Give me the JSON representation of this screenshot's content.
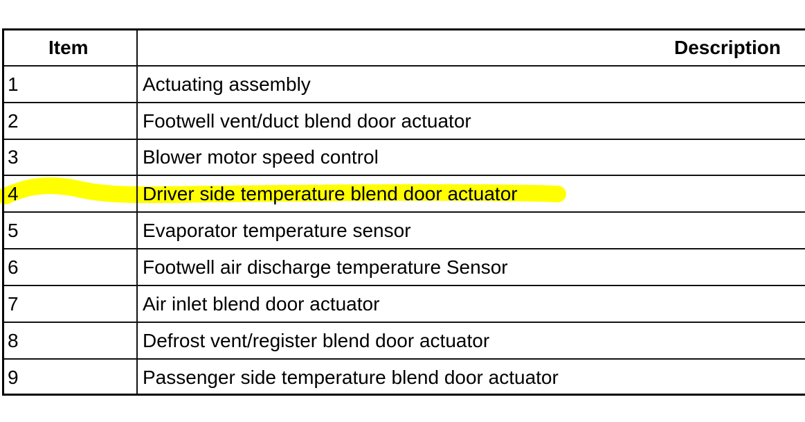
{
  "table": {
    "headers": {
      "item": "Item",
      "description": "Description"
    },
    "rows": [
      {
        "item": "1",
        "description": "Actuating assembly"
      },
      {
        "item": "2",
        "description": "Footwell vent/duct blend door actuator"
      },
      {
        "item": "3",
        "description": "Blower motor speed control"
      },
      {
        "item": "4",
        "description": "Driver side temperature blend door actuator",
        "highlighted": true
      },
      {
        "item": "5",
        "description": "Evaporator temperature sensor"
      },
      {
        "item": "6",
        "description": "Footwell air discharge temperature Sensor"
      },
      {
        "item": "7",
        "description": "Air inlet blend door actuator"
      },
      {
        "item": "8",
        "description": "Defrost vent/register blend door actuator"
      },
      {
        "item": "9",
        "description": "Passenger side temperature blend door actuator"
      }
    ]
  },
  "colors": {
    "highlight": "#ffff00"
  }
}
